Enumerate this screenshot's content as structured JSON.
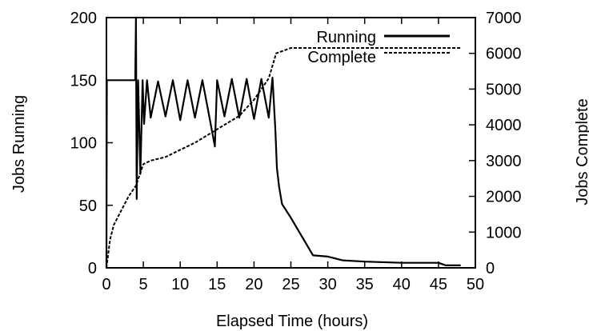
{
  "chart_data": {
    "type": "line",
    "xlabel": "Elapsed Time (hours)",
    "ylabel_left": "Jobs Running",
    "ylabel_right": "Jobs Complete",
    "xlim": [
      0,
      50
    ],
    "ylim_left": [
      0,
      200
    ],
    "ylim_right": [
      0,
      7000
    ],
    "x_ticks": [
      "0",
      "5",
      "10",
      "15",
      "20",
      "25",
      "30",
      "35",
      "40",
      "45",
      "50"
    ],
    "y_left_ticks": [
      "0",
      "50",
      "100",
      "150",
      "200"
    ],
    "y_right_ticks": [
      "0",
      "1000",
      "2000",
      "3000",
      "4000",
      "5000",
      "6000",
      "7000"
    ],
    "grid": false,
    "legend_position": "top-right",
    "series": [
      {
        "name": "Running",
        "axis": "left",
        "style": "solid",
        "points": [
          [
            0,
            0
          ],
          [
            0.05,
            150
          ],
          [
            3.9,
            150
          ],
          [
            4.0,
            200
          ],
          [
            4.1,
            55
          ],
          [
            4.3,
            150
          ],
          [
            4.6,
            75
          ],
          [
            4.9,
            150
          ],
          [
            5.1,
            115
          ],
          [
            5.5,
            150
          ],
          [
            6,
            120
          ],
          [
            7,
            149
          ],
          [
            8,
            121
          ],
          [
            9,
            150
          ],
          [
            10,
            118
          ],
          [
            11,
            150
          ],
          [
            12,
            120
          ],
          [
            13,
            150
          ],
          [
            14,
            119
          ],
          [
            14.7,
            97
          ],
          [
            15,
            150
          ],
          [
            16,
            121
          ],
          [
            17,
            151
          ],
          [
            18,
            120
          ],
          [
            19,
            151
          ],
          [
            20,
            119
          ],
          [
            21,
            151
          ],
          [
            22,
            120
          ],
          [
            22.5,
            152
          ],
          [
            22.9,
            110
          ],
          [
            23.1,
            80
          ],
          [
            23.4,
            65
          ],
          [
            23.8,
            51
          ],
          [
            25,
            40
          ],
          [
            26.5,
            25
          ],
          [
            28,
            10
          ],
          [
            30,
            9
          ],
          [
            32,
            6
          ],
          [
            35,
            5
          ],
          [
            40,
            4
          ],
          [
            45,
            4
          ],
          [
            46,
            2
          ],
          [
            48,
            2
          ]
        ]
      },
      {
        "name": "Complete",
        "axis": "right",
        "style": "dashed",
        "points": [
          [
            0,
            0
          ],
          [
            0.5,
            800
          ],
          [
            1,
            1200
          ],
          [
            2,
            1600
          ],
          [
            3,
            2000
          ],
          [
            4,
            2300
          ],
          [
            5,
            2900
          ],
          [
            6,
            3000
          ],
          [
            8,
            3100
          ],
          [
            10,
            3300
          ],
          [
            12,
            3500
          ],
          [
            14,
            3750
          ],
          [
            16,
            4000
          ],
          [
            18,
            4250
          ],
          [
            20,
            4700
          ],
          [
            22,
            5300
          ],
          [
            23,
            6000
          ],
          [
            25,
            6150
          ],
          [
            30,
            6150
          ],
          [
            40,
            6150
          ],
          [
            48,
            6150
          ]
        ]
      }
    ]
  }
}
